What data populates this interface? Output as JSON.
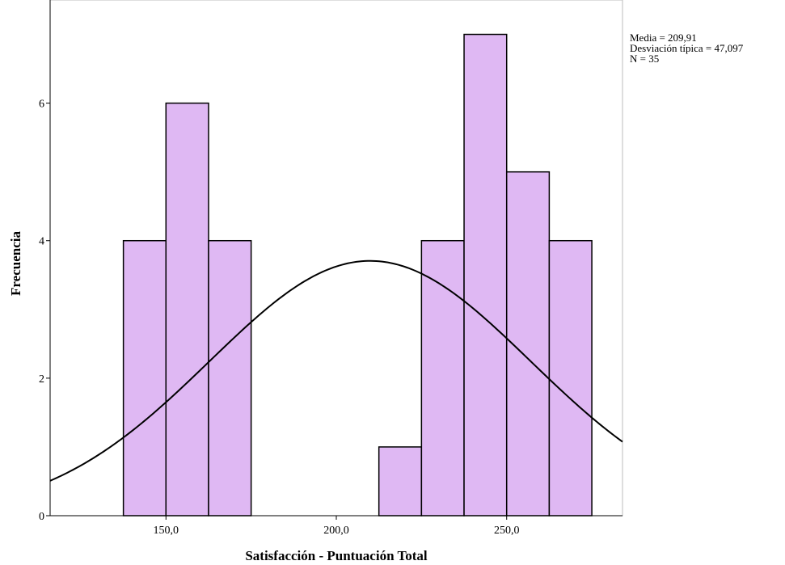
{
  "chart_data": {
    "type": "bar",
    "subtype": "histogram",
    "xlabel": "Satisfacción - Puntuación Total",
    "ylabel": "Frecuencia",
    "xlim": [
      116,
      284
    ],
    "ylim": [
      0,
      7.5
    ],
    "bin_width": 12.5,
    "bins": [
      {
        "start": 137.5,
        "end": 150.0,
        "count": 4
      },
      {
        "start": 150.0,
        "end": 162.5,
        "count": 6
      },
      {
        "start": 162.5,
        "end": 175.0,
        "count": 4
      },
      {
        "start": 212.5,
        "end": 225.0,
        "count": 1
      },
      {
        "start": 225.0,
        "end": 237.5,
        "count": 4
      },
      {
        "start": 237.5,
        "end": 250.0,
        "count": 7
      },
      {
        "start": 250.0,
        "end": 262.5,
        "count": 5
      },
      {
        "start": 262.5,
        "end": 275.0,
        "count": 4
      }
    ],
    "x_ticks": [
      {
        "value": 150,
        "label": "150,0"
      },
      {
        "value": 200,
        "label": "200,0"
      },
      {
        "value": 250,
        "label": "250,0"
      }
    ],
    "y_ticks": [
      {
        "value": 0,
        "label": "0"
      },
      {
        "value": 2,
        "label": "2"
      },
      {
        "value": 4,
        "label": "4"
      },
      {
        "value": 6,
        "label": "6"
      }
    ],
    "normal_curve": {
      "mean": 209.91,
      "sd": 47.097,
      "n": 35
    },
    "stats": {
      "mean": "Media = 209,91",
      "sd": "Desviación típica = 47,097",
      "n": "N = 35"
    },
    "grid": false,
    "colors": {
      "bar_fill": "#dfb8f3",
      "bar_stroke": "#000000",
      "curve": "#000000",
      "frame": "#bdbdbd"
    }
  }
}
